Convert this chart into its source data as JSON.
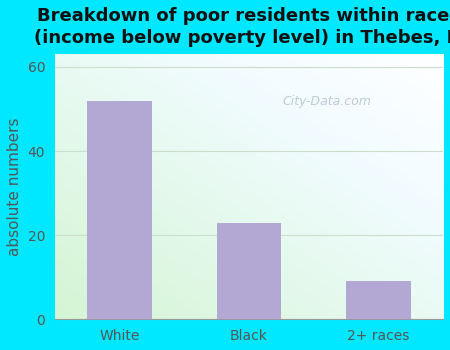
{
  "categories": [
    "White",
    "Black",
    "2+ races"
  ],
  "values": [
    52,
    23,
    9
  ],
  "bar_color": "#b3a8d4",
  "title_line1": "Breakdown of poor residents within races",
  "title_line2": "(income below poverty level) in Thebes, IL",
  "ylabel": "absolute numbers",
  "ylim": [
    0,
    63
  ],
  "yticks": [
    0,
    20,
    40,
    60
  ],
  "bg_outer": "#00e8ff",
  "watermark": "City-Data.com",
  "title_fontsize": 13,
  "label_fontsize": 11,
  "tick_fontsize": 10,
  "grid_color": "#e0e8e0"
}
